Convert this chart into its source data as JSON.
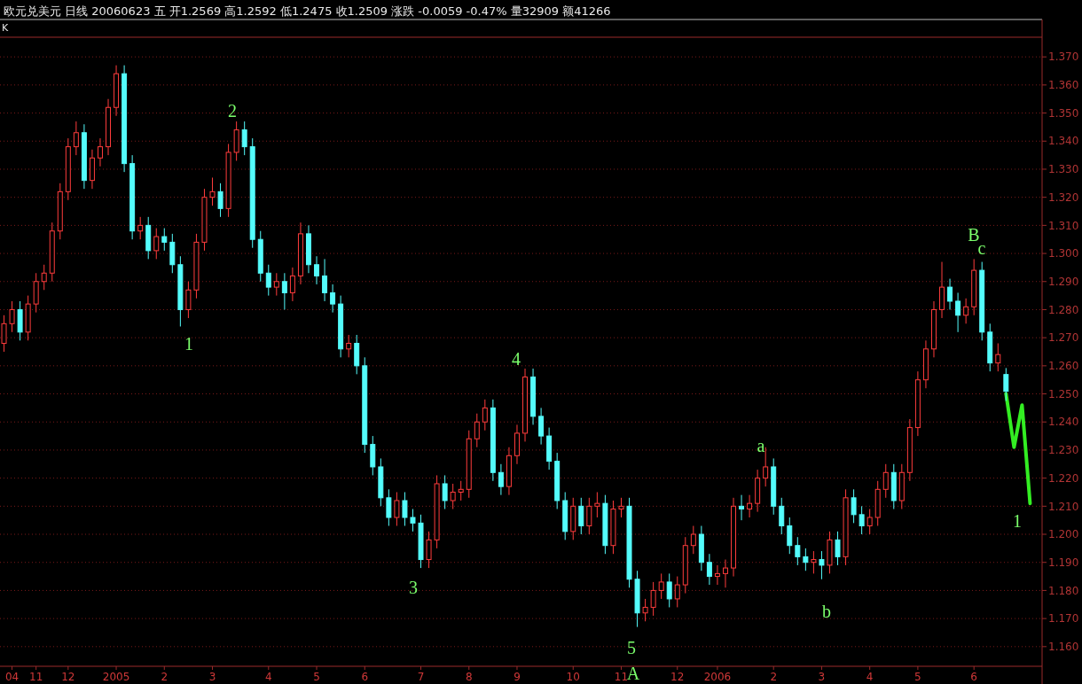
{
  "chart_data": {
    "type": "candlestick",
    "title": "欧元兑美元 日线 20060623 五 开1.2569 高1.2592 低1.2475 收1.2509 涨跌 -0.0059 -0.47% 量32909 额41266",
    "categories": [
      null,
      "04",
      null,
      null,
      "11",
      null,
      null,
      null,
      "12",
      null,
      null,
      null,
      null,
      null,
      "2005",
      null,
      null,
      null,
      null,
      null,
      "2",
      null,
      null,
      null,
      null,
      null,
      "3",
      null,
      null,
      null,
      null,
      null,
      null,
      "4",
      null,
      null,
      null,
      null,
      null,
      "5",
      null,
      null,
      null,
      null,
      null,
      "6",
      null,
      null,
      null,
      null,
      null,
      null,
      "7",
      null,
      null,
      null,
      null,
      null,
      "8",
      null,
      null,
      null,
      null,
      null,
      "9",
      null,
      null,
      null,
      null,
      null,
      null,
      "10",
      null,
      null,
      null,
      null,
      null,
      "11",
      null,
      null,
      null,
      null,
      null,
      null,
      "12",
      null,
      null,
      null,
      null,
      "2006",
      null,
      null,
      null,
      null,
      null,
      null,
      "2",
      null,
      null,
      null,
      null,
      null,
      "3",
      null,
      null,
      null,
      null,
      null,
      "4",
      null,
      null,
      null,
      null,
      null,
      "5",
      null,
      null,
      null,
      null,
      null,
      null,
      "6",
      null,
      null,
      null,
      null,
      null,
      null,
      null,
      null
    ],
    "ohlc": [
      [
        1.268,
        1.278,
        1.265,
        1.275
      ],
      [
        1.275,
        1.283,
        1.272,
        1.28
      ],
      [
        1.28,
        1.283,
        1.269,
        1.272
      ],
      [
        1.272,
        1.285,
        1.269,
        1.282
      ],
      [
        1.282,
        1.293,
        1.279,
        1.29
      ],
      [
        1.29,
        1.296,
        1.287,
        1.293
      ],
      [
        1.293,
        1.311,
        1.29,
        1.308
      ],
      [
        1.308,
        1.325,
        1.305,
        1.322
      ],
      [
        1.322,
        1.341,
        1.319,
        1.338
      ],
      [
        1.338,
        1.347,
        1.335,
        1.343
      ],
      [
        1.343,
        1.346,
        1.323,
        1.326
      ],
      [
        1.326,
        1.337,
        1.323,
        1.334
      ],
      [
        1.334,
        1.341,
        1.331,
        1.338
      ],
      [
        1.338,
        1.355,
        1.335,
        1.352
      ],
      [
        1.352,
        1.367,
        1.349,
        1.364
      ],
      [
        1.364,
        1.367,
        1.329,
        1.332
      ],
      [
        1.332,
        1.335,
        1.305,
        1.308
      ],
      [
        1.308,
        1.313,
        1.305,
        1.31
      ],
      [
        1.31,
        1.313,
        1.298,
        1.301
      ],
      [
        1.301,
        1.309,
        1.298,
        1.306
      ],
      [
        1.306,
        1.309,
        1.301,
        1.304
      ],
      [
        1.304,
        1.307,
        1.293,
        1.296
      ],
      [
        1.296,
        1.299,
        1.274,
        1.28
      ],
      [
        1.28,
        1.29,
        1.277,
        1.287
      ],
      [
        1.287,
        1.307,
        1.284,
        1.304
      ],
      [
        1.304,
        1.323,
        1.301,
        1.32
      ],
      [
        1.32,
        1.327,
        1.317,
        1.322
      ],
      [
        1.322,
        1.325,
        1.313,
        1.316
      ],
      [
        1.316,
        1.339,
        1.313,
        1.336
      ],
      [
        1.336,
        1.347,
        1.333,
        1.344
      ],
      [
        1.344,
        1.347,
        1.335,
        1.338
      ],
      [
        1.338,
        1.341,
        1.302,
        1.305
      ],
      [
        1.305,
        1.308,
        1.29,
        1.293
      ],
      [
        1.293,
        1.296,
        1.285,
        1.288
      ],
      [
        1.288,
        1.293,
        1.285,
        1.29
      ],
      [
        1.29,
        1.293,
        1.28,
        1.286
      ],
      [
        1.286,
        1.295,
        1.283,
        1.292
      ],
      [
        1.292,
        1.311,
        1.289,
        1.307
      ],
      [
        1.307,
        1.31,
        1.293,
        1.296
      ],
      [
        1.296,
        1.299,
        1.289,
        1.292
      ],
      [
        1.292,
        1.298,
        1.283,
        1.286
      ],
      [
        1.286,
        1.289,
        1.279,
        1.282
      ],
      [
        1.282,
        1.285,
        1.263,
        1.266
      ],
      [
        1.266,
        1.271,
        1.263,
        1.268
      ],
      [
        1.268,
        1.271,
        1.257,
        1.26
      ],
      [
        1.26,
        1.263,
        1.229,
        1.232
      ],
      [
        1.232,
        1.235,
        1.221,
        1.224
      ],
      [
        1.224,
        1.227,
        1.21,
        1.213
      ],
      [
        1.213,
        1.216,
        1.203,
        1.206
      ],
      [
        1.206,
        1.215,
        1.203,
        1.212
      ],
      [
        1.212,
        1.215,
        1.203,
        1.206
      ],
      [
        1.206,
        1.209,
        1.201,
        1.204
      ],
      [
        1.204,
        1.207,
        1.188,
        1.191
      ],
      [
        1.191,
        1.201,
        1.188,
        1.198
      ],
      [
        1.198,
        1.221,
        1.195,
        1.218
      ],
      [
        1.218,
        1.221,
        1.209,
        1.212
      ],
      [
        1.212,
        1.218,
        1.209,
        1.215
      ],
      [
        1.215,
        1.219,
        1.212,
        1.216
      ],
      [
        1.216,
        1.237,
        1.213,
        1.234
      ],
      [
        1.234,
        1.243,
        1.231,
        1.24
      ],
      [
        1.24,
        1.248,
        1.237,
        1.245
      ],
      [
        1.245,
        1.248,
        1.219,
        1.222
      ],
      [
        1.222,
        1.225,
        1.214,
        1.217
      ],
      [
        1.217,
        1.231,
        1.214,
        1.228
      ],
      [
        1.228,
        1.239,
        1.225,
        1.236
      ],
      [
        1.236,
        1.259,
        1.233,
        1.256
      ],
      [
        1.256,
        1.259,
        1.239,
        1.242
      ],
      [
        1.242,
        1.245,
        1.232,
        1.235
      ],
      [
        1.235,
        1.238,
        1.223,
        1.226
      ],
      [
        1.226,
        1.229,
        1.209,
        1.212
      ],
      [
        1.212,
        1.215,
        1.198,
        1.201
      ],
      [
        1.201,
        1.213,
        1.198,
        1.21
      ],
      [
        1.21,
        1.213,
        1.2,
        1.203
      ],
      [
        1.203,
        1.213,
        1.2,
        1.21
      ],
      [
        1.21,
        1.215,
        1.206,
        1.211
      ],
      [
        1.211,
        1.214,
        1.193,
        1.196
      ],
      [
        1.196,
        1.212,
        1.193,
        1.209
      ],
      [
        1.209,
        1.213,
        1.206,
        1.21
      ],
      [
        1.21,
        1.213,
        1.181,
        1.184
      ],
      [
        1.184,
        1.187,
        1.167,
        1.172
      ],
      [
        1.172,
        1.177,
        1.169,
        1.174
      ],
      [
        1.174,
        1.183,
        1.171,
        1.18
      ],
      [
        1.18,
        1.186,
        1.177,
        1.183
      ],
      [
        1.183,
        1.186,
        1.174,
        1.177
      ],
      [
        1.177,
        1.185,
        1.174,
        1.182
      ],
      [
        1.182,
        1.199,
        1.179,
        1.196
      ],
      [
        1.196,
        1.203,
        1.193,
        1.2
      ],
      [
        1.2,
        1.203,
        1.187,
        1.19
      ],
      [
        1.19,
        1.193,
        1.182,
        1.185
      ],
      [
        1.185,
        1.189,
        1.182,
        1.186
      ],
      [
        1.186,
        1.191,
        1.181,
        1.188
      ],
      [
        1.188,
        1.213,
        1.185,
        1.21
      ],
      [
        1.21,
        1.214,
        1.205,
        1.209
      ],
      [
        1.209,
        1.214,
        1.206,
        1.211
      ],
      [
        1.211,
        1.223,
        1.208,
        1.22
      ],
      [
        1.22,
        1.231,
        1.217,
        1.224
      ],
      [
        1.224,
        1.227,
        1.207,
        1.21
      ],
      [
        1.21,
        1.213,
        1.2,
        1.203
      ],
      [
        1.203,
        1.206,
        1.193,
        1.196
      ],
      [
        1.196,
        1.199,
        1.189,
        1.192
      ],
      [
        1.192,
        1.195,
        1.187,
        1.19
      ],
      [
        1.19,
        1.194,
        1.186,
        1.191
      ],
      [
        1.191,
        1.194,
        1.184,
        1.189
      ],
      [
        1.189,
        1.201,
        1.186,
        1.198
      ],
      [
        1.198,
        1.201,
        1.189,
        1.192
      ],
      [
        1.192,
        1.216,
        1.189,
        1.213
      ],
      [
        1.213,
        1.216,
        1.204,
        1.207
      ],
      [
        1.207,
        1.21,
        1.2,
        1.203
      ],
      [
        1.203,
        1.209,
        1.2,
        1.206
      ],
      [
        1.206,
        1.219,
        1.203,
        1.216
      ],
      [
        1.216,
        1.225,
        1.213,
        1.222
      ],
      [
        1.222,
        1.225,
        1.209,
        1.212
      ],
      [
        1.212,
        1.225,
        1.209,
        1.222
      ],
      [
        1.222,
        1.241,
        1.219,
        1.238
      ],
      [
        1.238,
        1.258,
        1.235,
        1.255
      ],
      [
        1.255,
        1.269,
        1.252,
        1.266
      ],
      [
        1.266,
        1.283,
        1.263,
        1.28
      ],
      [
        1.28,
        1.297,
        1.277,
        1.288
      ],
      [
        1.288,
        1.291,
        1.28,
        1.283
      ],
      [
        1.283,
        1.286,
        1.272,
        1.278
      ],
      [
        1.278,
        1.284,
        1.275,
        1.281
      ],
      [
        1.281,
        1.298,
        1.278,
        1.294
      ],
      [
        1.294,
        1.297,
        1.269,
        1.272
      ],
      [
        1.272,
        1.275,
        1.258,
        1.261
      ],
      [
        1.261,
        1.268,
        1.258,
        1.264
      ],
      [
        1.2569,
        1.2592,
        1.2475,
        1.2509
      ],
      null,
      null,
      null,
      null
    ],
    "series": [
      {
        "type": "line",
        "color": "#33ee22",
        "values": [
          null,
          null,
          null,
          null,
          null,
          null,
          null,
          null,
          null,
          null,
          null,
          null,
          null,
          null,
          null,
          null,
          null,
          null,
          null,
          null,
          null,
          null,
          null,
          null,
          null,
          null,
          null,
          null,
          null,
          null,
          null,
          null,
          null,
          null,
          null,
          null,
          null,
          null,
          null,
          null,
          null,
          null,
          null,
          null,
          null,
          null,
          null,
          null,
          null,
          null,
          null,
          null,
          null,
          null,
          null,
          null,
          null,
          null,
          null,
          null,
          null,
          null,
          null,
          null,
          null,
          null,
          null,
          null,
          null,
          null,
          null,
          null,
          null,
          null,
          null,
          null,
          null,
          null,
          null,
          null,
          null,
          null,
          null,
          null,
          null,
          null,
          null,
          null,
          null,
          null,
          null,
          null,
          null,
          null,
          null,
          null,
          null,
          null,
          null,
          null,
          null,
          null,
          null,
          null,
          null,
          null,
          null,
          null,
          null,
          null,
          null,
          null,
          null,
          null,
          null,
          null,
          null,
          null,
          null,
          null,
          null,
          null,
          null,
          null,
          null,
          1.25,
          1.231,
          1.246,
          1.211,
          null
        ]
      }
    ],
    "ylim": [
      1.153,
      1.377
    ],
    "yticks": [
      {
        "value": 1.16,
        "label": "1.160"
      },
      {
        "value": 1.17,
        "label": "1.170"
      },
      {
        "value": 1.18,
        "label": "1.180"
      },
      {
        "value": 1.19,
        "label": "1.190"
      },
      {
        "value": 1.2,
        "label": "1.200"
      },
      {
        "value": 1.21,
        "label": "1.210"
      },
      {
        "value": 1.22,
        "label": "1.220"
      },
      {
        "value": 1.23,
        "label": "1.230"
      },
      {
        "value": 1.24,
        "label": "1.240"
      },
      {
        "value": 1.25,
        "label": "1.250"
      },
      {
        "value": 1.26,
        "label": "1.260"
      },
      {
        "value": 1.27,
        "label": "1.270"
      },
      {
        "value": 1.28,
        "label": "1.280"
      },
      {
        "value": 1.29,
        "label": "1.290"
      },
      {
        "value": 1.3,
        "label": "1.300"
      },
      {
        "value": 1.31,
        "label": "1.310"
      },
      {
        "value": 1.32,
        "label": "1.320"
      },
      {
        "value": 1.33,
        "label": "1.330"
      },
      {
        "value": 1.34,
        "label": "1.340"
      },
      {
        "value": 1.35,
        "label": "1.350"
      },
      {
        "value": 1.36,
        "label": "1.360"
      },
      {
        "value": 1.37,
        "label": "1.370"
      }
    ],
    "grid": "y",
    "annotations": [
      "K",
      "1",
      "2",
      "3",
      "4",
      "5",
      "A",
      "a",
      "b",
      "B",
      "c",
      "1"
    ]
  }
}
